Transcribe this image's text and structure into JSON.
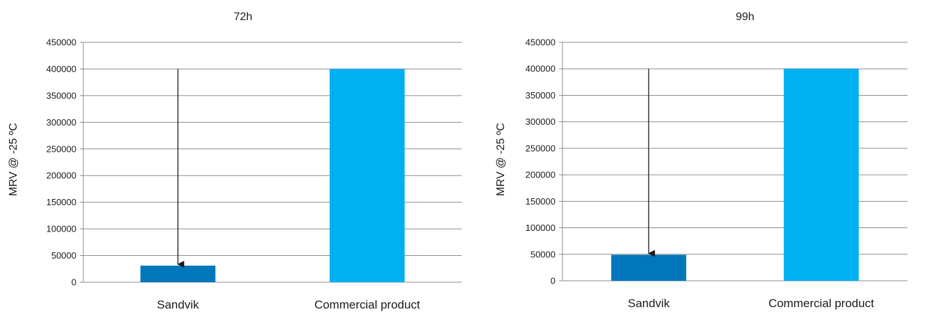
{
  "chart_data": [
    {
      "type": "bar",
      "title": "72h",
      "ylabel": "MRV @ -25 ºC",
      "xlabel": "",
      "categories": [
        "Sandvik",
        "Commercial product"
      ],
      "values": [
        31000,
        400000
      ],
      "colors": [
        "#0077bb",
        "#00b0f0"
      ],
      "ylim": [
        0,
        450000
      ],
      "yticks": [
        "0",
        "50000",
        "100000",
        "150000",
        "200000",
        "250000",
        "300000",
        "350000",
        "400000",
        "450000"
      ],
      "grid": true,
      "legend": "none",
      "annotation": {
        "type": "arrow",
        "category": "Sandvik",
        "from": 400000,
        "to": 31000
      }
    },
    {
      "type": "bar",
      "title": "99h",
      "ylabel": "MRV @ -25 ºC",
      "xlabel": "",
      "categories": [
        "Sandvik",
        "Commercial product"
      ],
      "values": [
        49000,
        400000
      ],
      "colors": [
        "#0077bb",
        "#00b0f0"
      ],
      "ylim": [
        0,
        450000
      ],
      "yticks": [
        "0",
        "50000",
        "100000",
        "150000",
        "200000",
        "250000",
        "300000",
        "350000",
        "400000",
        "450000"
      ],
      "grid": true,
      "legend": "none",
      "annotation": {
        "type": "arrow",
        "category": "Sandvik",
        "from": 400000,
        "to": 49000
      }
    }
  ]
}
